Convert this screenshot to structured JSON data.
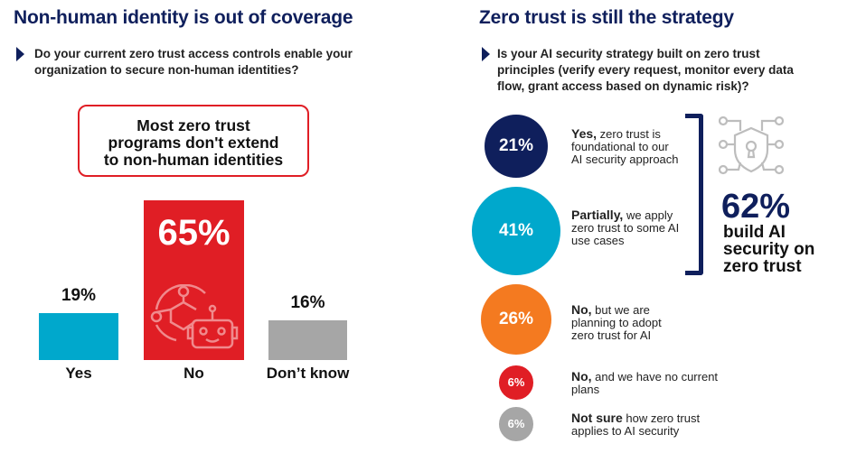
{
  "left": {
    "title": "Non-human identity is out of coverage",
    "question": "Do your current zero trust access controls enable your organization to secure non-human identities?",
    "callout": "Most zero trust programs don't extend to non-human identities",
    "icon": "network-robot-icon"
  },
  "right": {
    "title": "Zero trust is still the strategy",
    "question": "Is your AI security strategy built on zero trust principles (verify every request, monitor every data flow, grant access based on dynamic risk)?",
    "summary_value": "62%",
    "summary_text": "build AI security on zero trust",
    "icon": "shield-lock-circuit-icon"
  },
  "chart_data": [
    {
      "type": "bar",
      "categories": [
        "Yes",
        "No",
        "Don’t know"
      ],
      "values": [
        19,
        65,
        16
      ],
      "labels": [
        "19%",
        "65%",
        "16%"
      ],
      "colors": [
        "#00a8cc",
        "#e01e25",
        "#a6a6a6"
      ]
    },
    {
      "type": "bubble",
      "items": [
        {
          "value": 21,
          "label": "21%",
          "lead": "Yes,",
          "text": " zero trust is foundational to our AI security approach",
          "color": "#0f1f5c"
        },
        {
          "value": 41,
          "label": "41%",
          "lead": "Partially,",
          "text": " we apply zero trust to some AI use cases",
          "color": "#00a8cc"
        },
        {
          "value": 26,
          "label": "26%",
          "lead": "No,",
          "text": " but we are planning to adopt zero trust for AI",
          "color": "#f47a20"
        },
        {
          "value": 6,
          "label": "6%",
          "lead": "No,",
          "text": " and we have no current plans",
          "color": "#e01e25"
        },
        {
          "value": 6,
          "label": "6%",
          "lead": "Not sure",
          "text": " how zero trust applies to AI security",
          "color": "#a6a6a6"
        }
      ]
    }
  ]
}
